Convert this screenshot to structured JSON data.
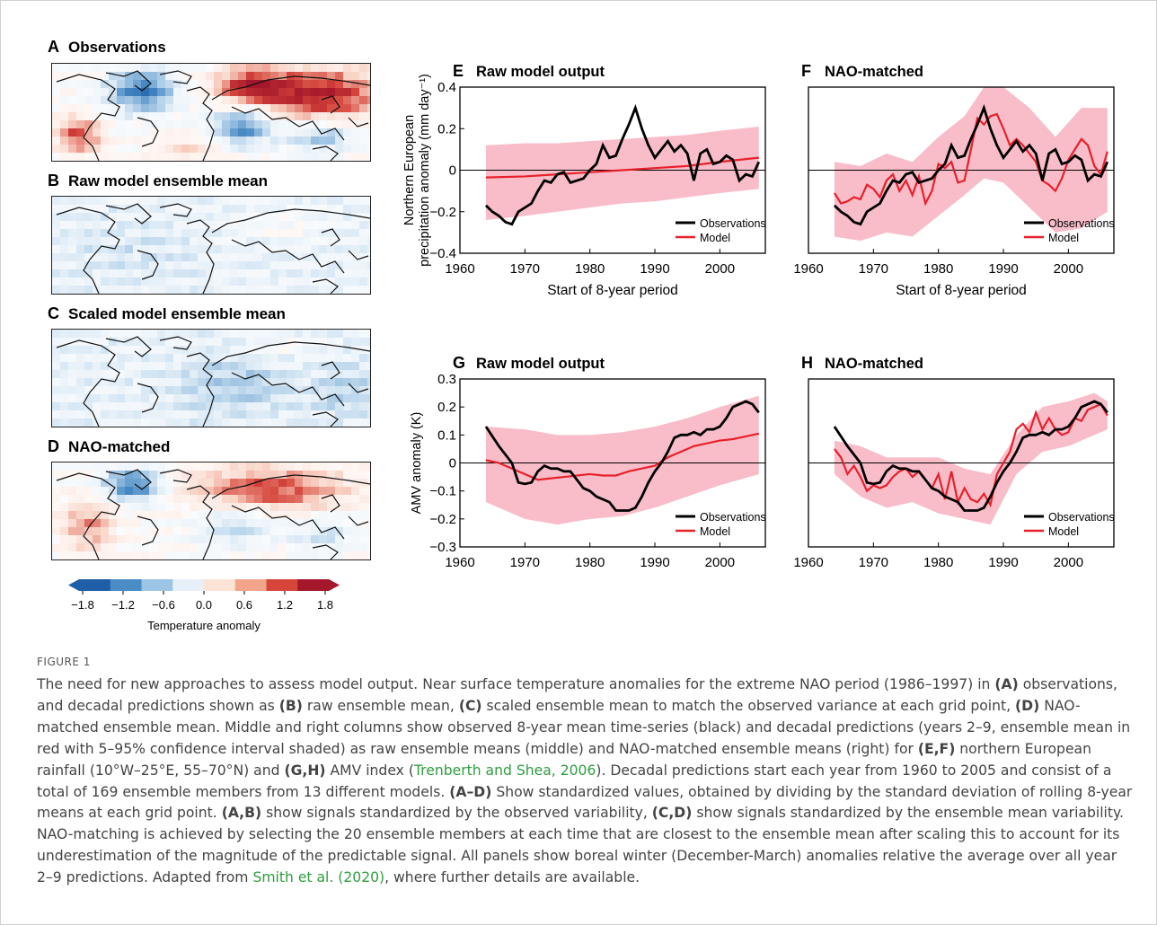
{
  "maps": [
    {
      "letter": "A",
      "title": "Observations"
    },
    {
      "letter": "B",
      "title": "Raw model ensemble mean"
    },
    {
      "letter": "C",
      "title": "Scaled model ensemble mean"
    },
    {
      "letter": "D",
      "title": "NAO-matched"
    }
  ],
  "colorbar": {
    "ticks": [
      "−1.8",
      "−1.2",
      "−0.6",
      "0.0",
      "0.6",
      "1.2",
      "1.8"
    ],
    "label": "Temperature anomaly",
    "colors": [
      "#1f5fa8",
      "#4a8cc6",
      "#9cc4e4",
      "#e7f0f8",
      "#fbe3d6",
      "#f2a58a",
      "#d6453a",
      "#a5172b"
    ]
  },
  "chart_data": [
    {
      "id": "E",
      "type": "line",
      "title": "E  Raw model output",
      "xlabel": "Start of 8-year period",
      "ylabel": "Northern European precipitation anomaly (mm day⁻¹)",
      "xlim": [
        1960,
        2007
      ],
      "ylim": [
        -0.4,
        0.4
      ],
      "xticks": [
        1960,
        1970,
        1980,
        1990,
        2000
      ],
      "yticks": [
        -0.4,
        -0.2,
        0,
        0.2,
        0.4
      ],
      "ytick_labels": [
        "−0.4",
        "−0.2",
        "0",
        "0.2",
        "0.4"
      ],
      "legend": [
        "Observations",
        "Model"
      ],
      "obs": {
        "x": [
          1964,
          1965,
          1966,
          1967,
          1968,
          1969,
          1970,
          1971,
          1972,
          1973,
          1974,
          1975,
          1976,
          1977,
          1978,
          1979,
          1980,
          1981,
          1982,
          1983,
          1984,
          1985,
          1986,
          1987,
          1988,
          1989,
          1990,
          1991,
          1992,
          1993,
          1994,
          1995,
          1996,
          1997,
          1998,
          1999,
          2000,
          2001,
          2002,
          2003,
          2004,
          2005,
          2006
        ],
        "y": [
          -0.17,
          -0.2,
          -0.22,
          -0.25,
          -0.26,
          -0.2,
          -0.18,
          -0.16,
          -0.1,
          -0.05,
          -0.06,
          -0.02,
          -0.01,
          -0.06,
          -0.05,
          -0.04,
          0.0,
          0.03,
          0.12,
          0.06,
          0.07,
          0.15,
          0.22,
          0.3,
          0.2,
          0.12,
          0.06,
          0.1,
          0.14,
          0.09,
          0.12,
          0.08,
          -0.05,
          0.08,
          0.1,
          0.03,
          0.04,
          0.07,
          0.05,
          -0.05,
          -0.02,
          -0.03,
          0.04
        ]
      },
      "model": {
        "x": [
          1964,
          1970,
          1975,
          1980,
          1985,
          1990,
          1995,
          2000,
          2006
        ],
        "y": [
          -0.035,
          -0.03,
          -0.02,
          -0.01,
          0.0,
          0.01,
          0.02,
          0.04,
          0.06
        ]
      },
      "band": {
        "x": [
          1964,
          1970,
          1975,
          1980,
          1985,
          1990,
          1995,
          2000,
          2006
        ],
        "lo": [
          -0.24,
          -0.22,
          -0.2,
          -0.18,
          -0.16,
          -0.15,
          -0.13,
          -0.11,
          -0.09
        ],
        "hi": [
          0.12,
          0.13,
          0.13,
          0.14,
          0.15,
          0.16,
          0.17,
          0.19,
          0.21
        ]
      }
    },
    {
      "id": "F",
      "type": "line",
      "title": "F  NAO-matched",
      "xlabel": "Start of 8-year period",
      "ylabel": "",
      "xlim": [
        1960,
        2007
      ],
      "ylim": [
        -0.4,
        0.4
      ],
      "xticks": [
        1960,
        1970,
        1980,
        1990,
        2000
      ],
      "yticks": [],
      "ytick_labels": [],
      "legend": [
        "Observations",
        "Model"
      ],
      "obs": {
        "x": [
          1964,
          1965,
          1966,
          1967,
          1968,
          1969,
          1970,
          1971,
          1972,
          1973,
          1974,
          1975,
          1976,
          1977,
          1978,
          1979,
          1980,
          1981,
          1982,
          1983,
          1984,
          1985,
          1986,
          1987,
          1988,
          1989,
          1990,
          1991,
          1992,
          1993,
          1994,
          1995,
          1996,
          1997,
          1998,
          1999,
          2000,
          2001,
          2002,
          2003,
          2004,
          2005,
          2006
        ],
        "y": [
          -0.17,
          -0.2,
          -0.22,
          -0.25,
          -0.26,
          -0.2,
          -0.18,
          -0.16,
          -0.1,
          -0.05,
          -0.06,
          -0.02,
          -0.01,
          -0.06,
          -0.05,
          -0.04,
          0.0,
          0.03,
          0.12,
          0.06,
          0.07,
          0.15,
          0.22,
          0.3,
          0.2,
          0.12,
          0.06,
          0.1,
          0.14,
          0.09,
          0.12,
          0.08,
          -0.05,
          0.08,
          0.1,
          0.03,
          0.04,
          0.07,
          0.05,
          -0.05,
          -0.02,
          -0.03,
          0.04
        ]
      },
      "model": {
        "x": [
          1964,
          1965,
          1966,
          1967,
          1968,
          1969,
          1970,
          1971,
          1972,
          1973,
          1974,
          1975,
          1976,
          1977,
          1978,
          1979,
          1980,
          1981,
          1982,
          1983,
          1984,
          1985,
          1986,
          1987,
          1988,
          1989,
          1990,
          1991,
          1992,
          1993,
          1994,
          1995,
          1996,
          1997,
          1998,
          1999,
          2000,
          2001,
          2002,
          2003,
          2004,
          2005,
          2006
        ],
        "y": [
          -0.11,
          -0.16,
          -0.15,
          -0.13,
          -0.14,
          -0.07,
          -0.09,
          -0.13,
          -0.05,
          -0.02,
          -0.1,
          -0.05,
          -0.12,
          -0.03,
          -0.16,
          -0.1,
          0.03,
          0.01,
          0.04,
          -0.06,
          -0.05,
          0.1,
          0.25,
          0.22,
          0.26,
          0.27,
          0.2,
          0.12,
          0.15,
          0.12,
          0.08,
          0.04,
          -0.05,
          -0.07,
          -0.1,
          -0.04,
          0.05,
          0.1,
          0.15,
          0.12,
          0.02,
          -0.02,
          0.09
        ]
      },
      "band": {
        "x": [
          1964,
          1968,
          1972,
          1976,
          1980,
          1984,
          1987,
          1990,
          1994,
          1998,
          2002,
          2006
        ],
        "lo": [
          -0.32,
          -0.34,
          -0.3,
          -0.32,
          -0.22,
          -0.12,
          -0.04,
          -0.06,
          -0.18,
          -0.3,
          -0.28,
          -0.2
        ],
        "hi": [
          0.04,
          0.02,
          0.08,
          0.04,
          0.16,
          0.26,
          0.4,
          0.4,
          0.3,
          0.16,
          0.3,
          0.3
        ]
      }
    },
    {
      "id": "G",
      "type": "line",
      "title": "G  Raw model output",
      "xlabel": "",
      "ylabel": "AMV anomaly (K)",
      "xlim": [
        1960,
        2007
      ],
      "ylim": [
        -0.3,
        0.3
      ],
      "xticks": [
        1960,
        1970,
        1980,
        1990,
        2000
      ],
      "yticks": [
        -0.3,
        -0.2,
        -0.1,
        0,
        0.1,
        0.2,
        0.3
      ],
      "ytick_labels": [
        "−0.3",
        "−0.2",
        "−0.1",
        "0",
        "0.1",
        "0.2",
        "0.3"
      ],
      "legend": [
        "Observations",
        "Model"
      ],
      "obs": {
        "x": [
          1964,
          1966,
          1968,
          1969,
          1970,
          1971,
          1972,
          1973,
          1974,
          1975,
          1976,
          1977,
          1978,
          1979,
          1980,
          1981,
          1982,
          1983,
          1984,
          1985,
          1986,
          1987,
          1988,
          1989,
          1990,
          1991,
          1992,
          1993,
          1994,
          1995,
          1996,
          1997,
          1998,
          1999,
          2000,
          2001,
          2002,
          2003,
          2004,
          2005,
          2006
        ],
        "y": [
          0.13,
          0.06,
          0.0,
          -0.07,
          -0.075,
          -0.07,
          -0.03,
          -0.01,
          -0.02,
          -0.02,
          -0.03,
          -0.03,
          -0.06,
          -0.09,
          -0.1,
          -0.12,
          -0.13,
          -0.14,
          -0.17,
          -0.17,
          -0.17,
          -0.16,
          -0.12,
          -0.07,
          -0.03,
          0.0,
          0.04,
          0.09,
          0.1,
          0.1,
          0.11,
          0.1,
          0.12,
          0.12,
          0.13,
          0.16,
          0.2,
          0.21,
          0.22,
          0.21,
          0.18
        ]
      },
      "model": {
        "x": [
          1964,
          1966,
          1968,
          1970,
          1972,
          1974,
          1976,
          1978,
          1980,
          1982,
          1984,
          1986,
          1988,
          1990,
          1992,
          1994,
          1996,
          1998,
          2000,
          2002,
          2004,
          2006
        ],
        "y": [
          0.01,
          0.0,
          -0.02,
          -0.04,
          -0.06,
          -0.055,
          -0.05,
          -0.045,
          -0.04,
          -0.045,
          -0.045,
          -0.03,
          -0.02,
          -0.01,
          0.02,
          0.04,
          0.06,
          0.07,
          0.08,
          0.085,
          0.095,
          0.105
        ]
      },
      "band": {
        "x": [
          1964,
          1970,
          1975,
          1980,
          1985,
          1990,
          1995,
          2000,
          2006
        ],
        "lo": [
          -0.14,
          -0.2,
          -0.22,
          -0.2,
          -0.19,
          -0.16,
          -0.12,
          -0.08,
          -0.04
        ],
        "hi": [
          0.13,
          0.12,
          0.1,
          0.1,
          0.11,
          0.13,
          0.16,
          0.2,
          0.24
        ]
      }
    },
    {
      "id": "H",
      "type": "line",
      "title": "H  NAO-matched",
      "xlabel": "",
      "ylabel": "",
      "xlim": [
        1960,
        2007
      ],
      "ylim": [
        -0.3,
        0.3
      ],
      "xticks": [
        1960,
        1970,
        1980,
        1990,
        2000
      ],
      "yticks": [],
      "ytick_labels": [],
      "legend": [
        "Observations",
        "Model"
      ],
      "obs": {
        "x": [
          1964,
          1966,
          1968,
          1969,
          1970,
          1971,
          1972,
          1973,
          1974,
          1975,
          1976,
          1977,
          1978,
          1979,
          1980,
          1981,
          1982,
          1983,
          1984,
          1985,
          1986,
          1987,
          1988,
          1989,
          1990,
          1991,
          1992,
          1993,
          1994,
          1995,
          1996,
          1997,
          1998,
          1999,
          2000,
          2001,
          2002,
          2003,
          2004,
          2005,
          2006
        ],
        "y": [
          0.13,
          0.06,
          0.0,
          -0.07,
          -0.075,
          -0.07,
          -0.03,
          -0.01,
          -0.02,
          -0.02,
          -0.03,
          -0.03,
          -0.06,
          -0.09,
          -0.1,
          -0.12,
          -0.13,
          -0.14,
          -0.17,
          -0.17,
          -0.17,
          -0.16,
          -0.12,
          -0.07,
          -0.03,
          0.0,
          0.04,
          0.09,
          0.1,
          0.1,
          0.11,
          0.1,
          0.12,
          0.12,
          0.13,
          0.16,
          0.2,
          0.21,
          0.22,
          0.21,
          0.18
        ]
      },
      "model": {
        "x": [
          1964,
          1965,
          1966,
          1967,
          1968,
          1969,
          1970,
          1971,
          1972,
          1973,
          1974,
          1975,
          1976,
          1977,
          1978,
          1979,
          1980,
          1981,
          1982,
          1983,
          1984,
          1985,
          1986,
          1987,
          1988,
          1989,
          1990,
          1991,
          1992,
          1993,
          1994,
          1995,
          1996,
          1997,
          1998,
          1999,
          2000,
          2001,
          2002,
          2003,
          2004,
          2005,
          2006
        ],
        "y": [
          0.05,
          0.02,
          -0.04,
          -0.01,
          -0.05,
          -0.1,
          -0.08,
          -0.09,
          -0.08,
          -0.05,
          -0.03,
          -0.02,
          -0.05,
          -0.03,
          -0.06,
          -0.09,
          -0.04,
          -0.13,
          -0.03,
          -0.14,
          -0.09,
          -0.13,
          -0.14,
          -0.11,
          -0.15,
          -0.04,
          0.0,
          0.04,
          0.12,
          0.14,
          0.11,
          0.18,
          0.12,
          0.16,
          0.12,
          0.1,
          0.11,
          0.16,
          0.15,
          0.19,
          0.2,
          0.21,
          0.17
        ]
      },
      "band": {
        "x": [
          1964,
          1968,
          1972,
          1976,
          1980,
          1984,
          1988,
          1992,
          1996,
          2000,
          2004,
          2006
        ],
        "lo": [
          -0.04,
          -0.12,
          -0.16,
          -0.14,
          -0.18,
          -0.2,
          -0.22,
          -0.04,
          0.04,
          0.06,
          0.1,
          0.12
        ],
        "hi": [
          0.08,
          0.06,
          0.02,
          0.02,
          0.02,
          -0.02,
          -0.04,
          0.1,
          0.2,
          0.22,
          0.25,
          0.22
        ]
      }
    }
  ],
  "caption": {
    "figure_label": "FIGURE 1",
    "s1": "The need for new approaches to assess model output. Near surface temperature anomalies for the extreme NAO period (1986–1997) in ",
    "a": "(A)",
    "s2": " observations, and decadal predictions shown as ",
    "b": "(B)",
    "s3": " raw ensemble mean, ",
    "c": "(C)",
    "s4": " scaled ensemble mean to match the observed variance at each grid point, ",
    "d": "(D)",
    "s5": " NAO-matched ensemble mean. Middle and right columns show observed 8-year mean time-series (black) and decadal predictions (years 2–9, ensemble mean in red with 5–95% confidence interval shaded) as raw ensemble means (middle) and NAO-matched ensemble means (right) for ",
    "ef": "(E,F)",
    "s6": " northern European rainfall (10°W–25°E, 55–70°N) and ",
    "gh": "(G,H)",
    "s7": " AMV index (",
    "ref1": "Trenberth and Shea, 2006",
    "s8": "). Decadal predictions start each year from 1960 to 2005 and consist of a total of 169 ensemble members from 13 different models. ",
    "ad": "(A–D)",
    "s9": " Show standardized values, obtained by dividing by the standard deviation of rolling 8-year means at each grid point. ",
    "ab": "(A,B)",
    "s10": " show signals standardized by the observed variability, ",
    "cd": "(C,D)",
    "s11": " show signals standardized by the ensemble mean variability. NAO-matching is achieved by selecting the 20 ensemble members at each time that are closest to the ensemble mean after scaling this to account for its underestimation of the magnitude of the predictable signal. All panels show boreal winter (December-March) anomalies relative the average over all year 2–9 predictions. Adapted from ",
    "ref2": "Smith et al. (2020)",
    "s12": ", where further details are available."
  }
}
